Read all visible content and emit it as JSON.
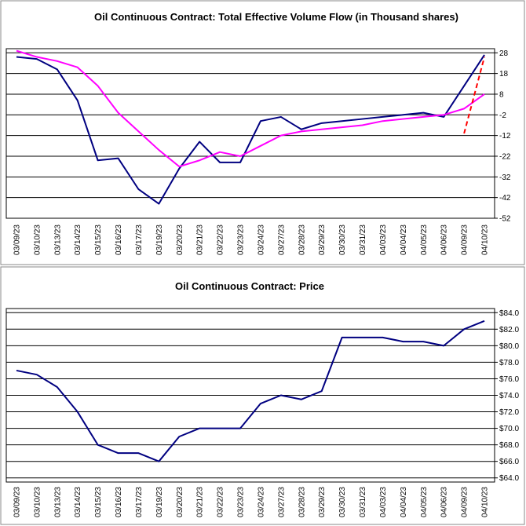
{
  "chart_data": [
    {
      "type": "line",
      "title": "Oil Continuous Contract: Total Effective Volume Flow (in Thousand shares)",
      "categories": [
        "03/09/23",
        "03/10/23",
        "03/13/23",
        "03/14/23",
        "03/15/23",
        "03/16/23",
        "03/17/23",
        "03/19/23",
        "03/20/23",
        "03/21/23",
        "03/22/23",
        "03/23/23",
        "03/24/23",
        "03/27/23",
        "03/28/23",
        "03/29/23",
        "03/30/23",
        "03/31/23",
        "04/03/23",
        "04/04/23",
        "04/05/23",
        "04/06/23",
        "04/09/23",
        "04/10/23"
      ],
      "series": [
        {
          "color": "#000080",
          "width": 2,
          "values": [
            26,
            25,
            20,
            5,
            -24,
            -23,
            -38,
            -45,
            -28,
            -15,
            -25,
            -25,
            -5,
            -3,
            -9,
            -6,
            -5,
            -4,
            -3,
            -2,
            -1,
            -3,
            12,
            27
          ]
        },
        {
          "color": "#ff00ff",
          "width": 2,
          "values": [
            29,
            26,
            24,
            21,
            12,
            -1,
            -10,
            -19,
            -27,
            -24,
            -20,
            -22,
            -17,
            -12,
            -10,
            -9,
            -8,
            -7,
            -5,
            -4,
            -3,
            -2,
            1,
            8
          ]
        },
        {
          "color": "#ff0000",
          "width": 2,
          "dashed": true,
          "values": [
            null,
            null,
            null,
            null,
            null,
            null,
            null,
            null,
            null,
            null,
            null,
            null,
            null,
            null,
            null,
            null,
            null,
            null,
            null,
            null,
            null,
            null,
            -11,
            26
          ]
        }
      ],
      "ylim": [
        -52,
        30
      ],
      "yticks": [
        -52,
        -42,
        -32,
        -22,
        -12,
        -2,
        8,
        18,
        28
      ],
      "grid": true
    },
    {
      "type": "line",
      "title": "Oil Continuous Contract: Price",
      "categories": [
        "03/09/23",
        "03/10/23",
        "03/13/23",
        "03/14/23",
        "03/15/23",
        "03/16/23",
        "03/17/23",
        "03/19/23",
        "03/20/23",
        "03/21/23",
        "03/22/23",
        "03/23/23",
        "03/24/23",
        "03/27/23",
        "03/28/23",
        "03/29/23",
        "03/30/23",
        "03/31/23",
        "04/03/23",
        "04/04/23",
        "04/05/23",
        "04/06/23",
        "04/09/23",
        "04/10/23"
      ],
      "series": [
        {
          "color": "#000080",
          "width": 2,
          "values": [
            77,
            76.5,
            75,
            72,
            68,
            67,
            67,
            66,
            69,
            70,
            70,
            70,
            73,
            74,
            73.5,
            74.5,
            81,
            81,
            81,
            80.5,
            80.5,
            80,
            82,
            83
          ]
        }
      ],
      "ylim": [
        63.5,
        84.5
      ],
      "yticks": [
        {
          "value": 64,
          "label": "$64.0"
        },
        {
          "value": 66,
          "label": "$66.0"
        },
        {
          "value": 68,
          "label": "$68.0"
        },
        {
          "value": 70,
          "label": "$70.0"
        },
        {
          "value": 72,
          "label": "$72.0"
        },
        {
          "value": 74,
          "label": "$74.0"
        },
        {
          "value": 76,
          "label": "$76.0"
        },
        {
          "value": 78,
          "label": "$78.0"
        },
        {
          "value": 80,
          "label": "$80.0"
        },
        {
          "value": 82,
          "label": "$82.0"
        },
        {
          "value": 84,
          "label": "$84.0"
        }
      ],
      "grid": true
    }
  ]
}
